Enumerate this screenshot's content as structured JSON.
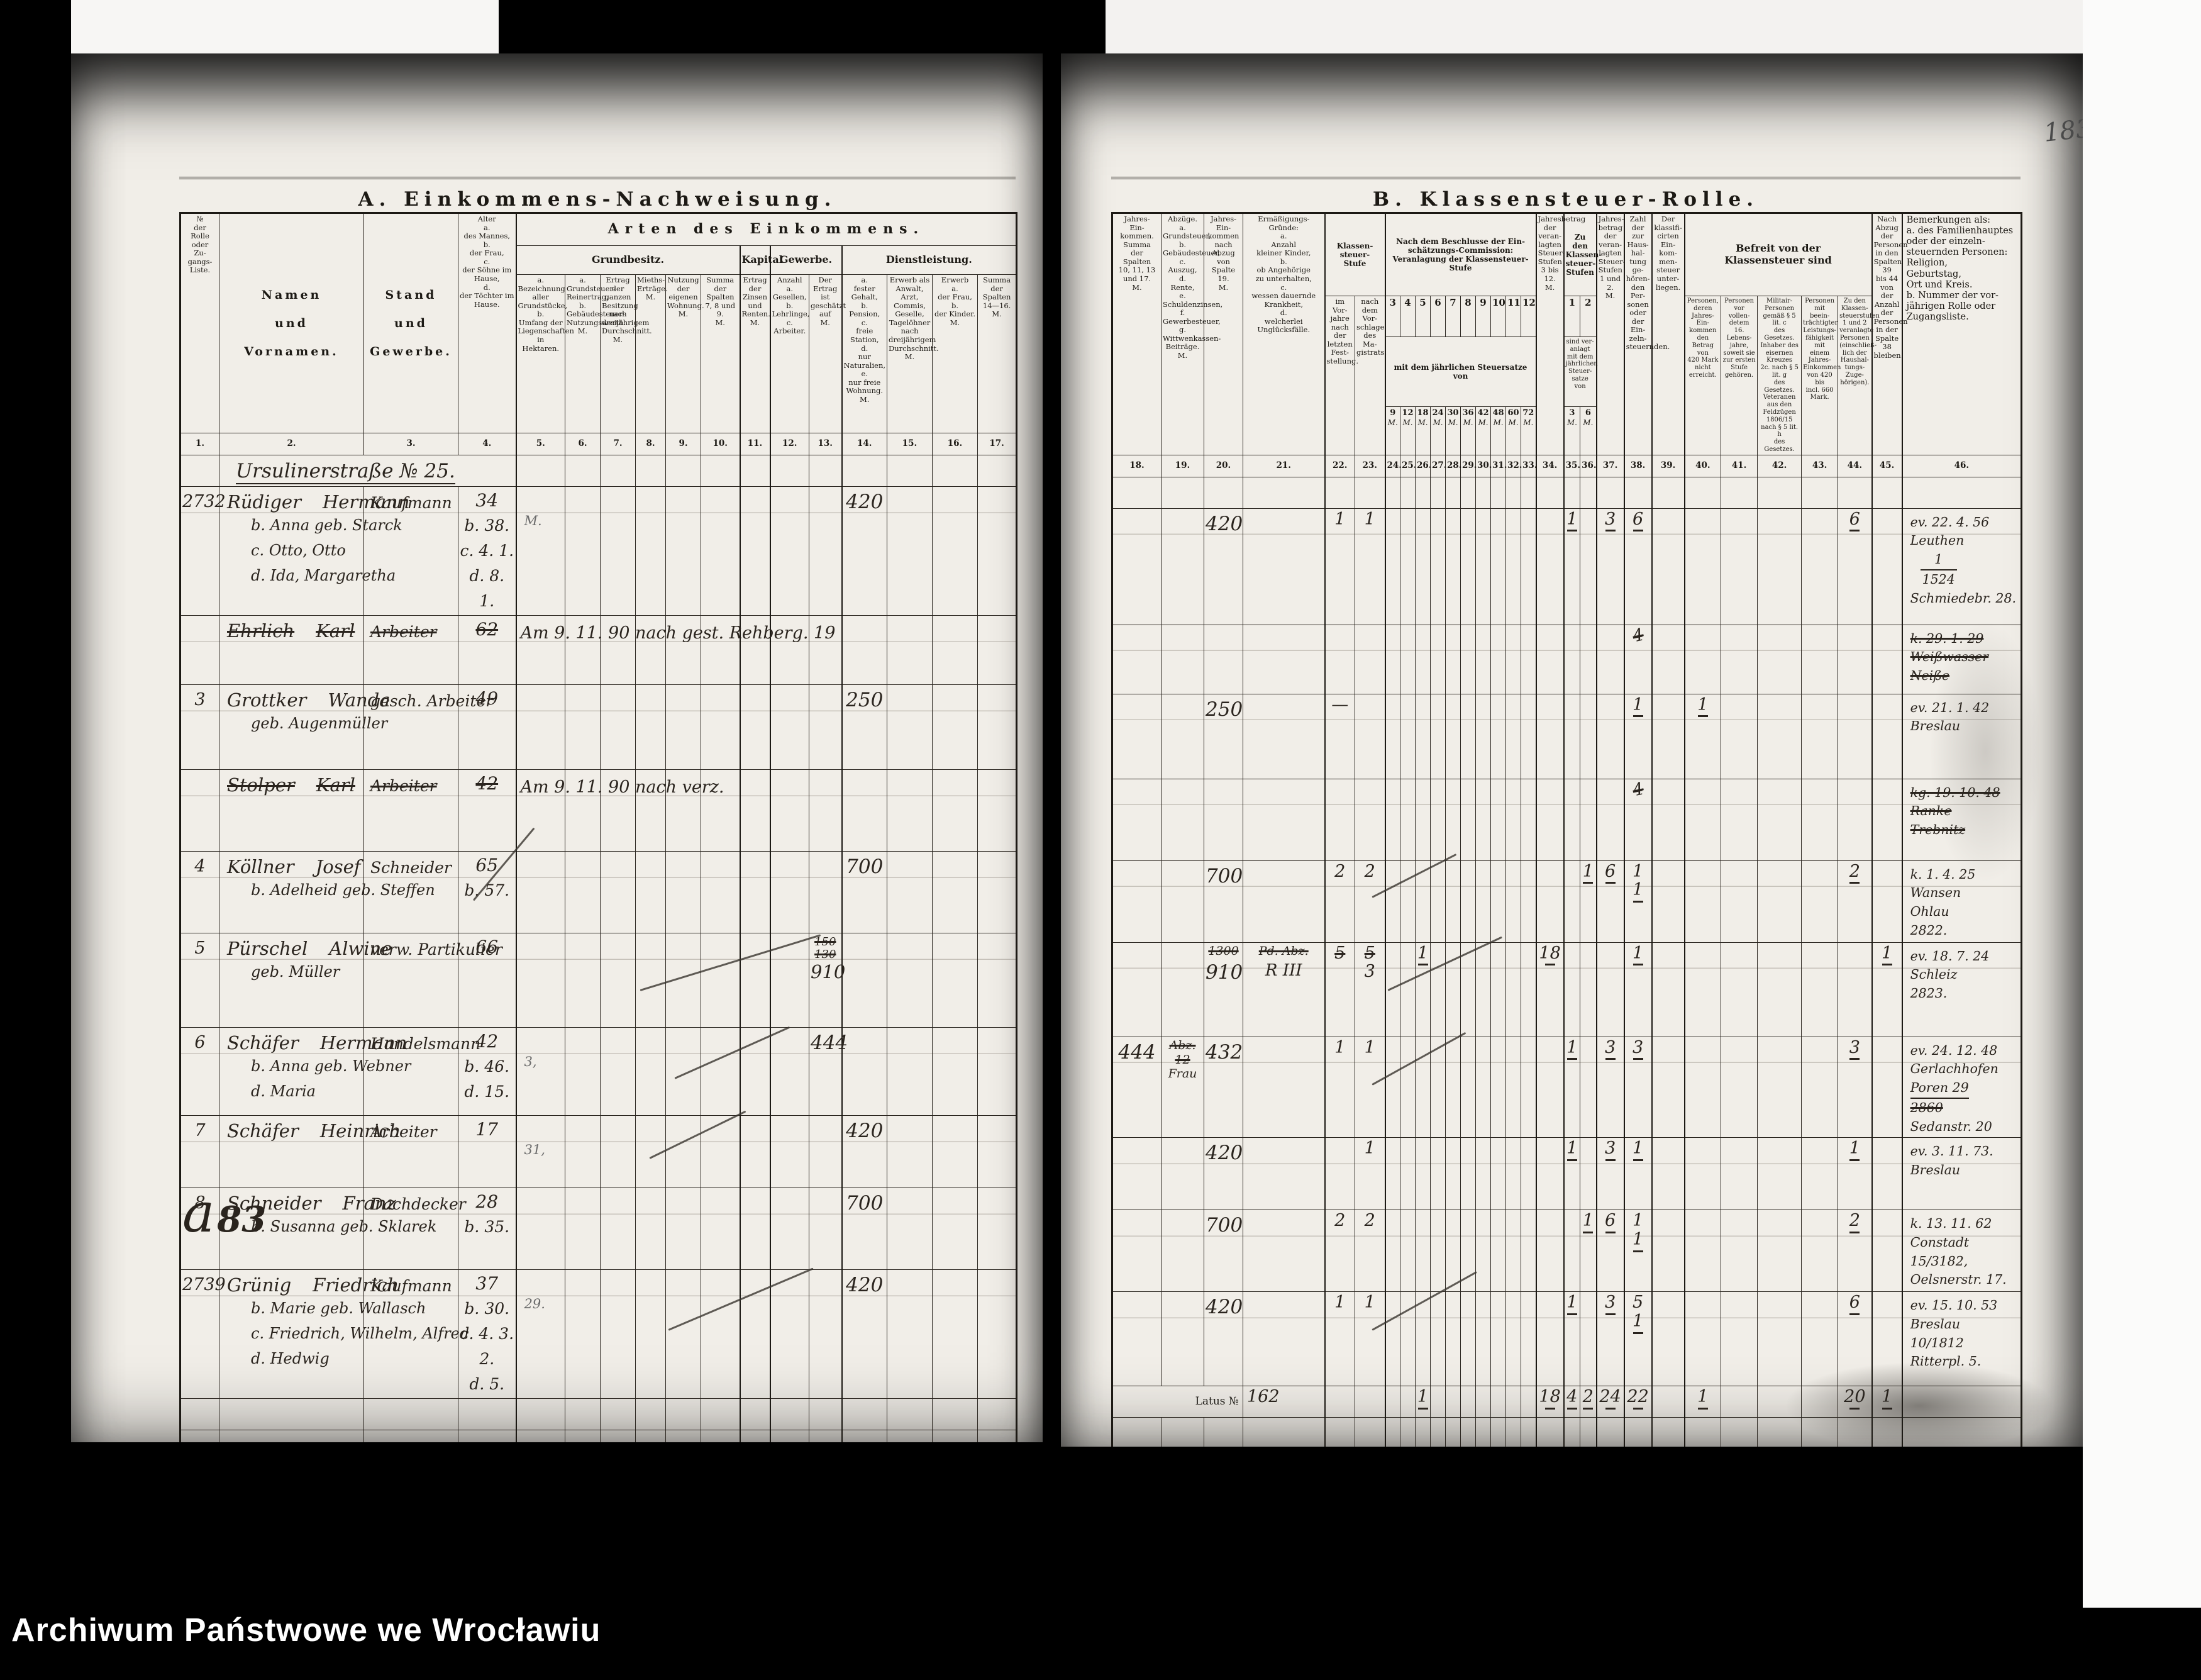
{
  "archive_caption": "Archiwum Państwowe we Wrocławiu",
  "page_number": "183",
  "left_page": {
    "title": "A. Einkommens-Nachweisung.",
    "arten_group": "Arten des Einkommens.",
    "groups": {
      "grundbesitz": "Grundbesitz.",
      "kapital": "Kapital",
      "gewerbe": "Gewerbe.",
      "dienstleistung": "Dienstleistung."
    },
    "cols": {
      "c1": "№\nder\nRolle\noder\nZu-\ngangs-\nListe.",
      "c2": "Namen\n\nund\n\nVornamen.",
      "c3": "Stand\n\nund\n\nGewerbe.",
      "c4": "Alter\na.\ndes Mannes,\nb.\nder Frau,\nc.\nder Söhne im Hause,\nd.\nder Töchter im Hause.",
      "c5": "a.\nBezeichnung aller Grundstücke,\nb.\nUmfang der Liegenschaften in Hektaren.",
      "c6": "a.\nGrundsteuer-Reinertrag,\nb.\nGebäudesteuer-Nutzungswerth.\nM.",
      "c7": "Ertrag der ganzen Besitzung nach dreijährigem Durchschnitt.\nM.",
      "c8": "Mieths-Erträge.\nM.",
      "c9": "Nutzung der eigenen Wohnung.\nM.",
      "c10": "Summa der Spalten 7, 8 und 9.\nM.",
      "c11": "Ertrag der Zinsen und Renten.\nM.",
      "c12": "Anzahl\na.\nGesellen,\nb.\nLehrlinge,\nc.\nArbeiter.",
      "c13": "Der Ertrag ist geschätzt auf\nM.",
      "c14": "a.\nfester Gehalt,\nb.\nPension,\nc.\nfreie Station,\nd.\nnur Naturalien,\ne.\nnur freie Wohnung.\nM.",
      "c15": "Erwerb als Anwalt, Arzt, Commis, Geselle, Tagelöhner nach dreijährigem Durchschnitt.\nM.",
      "c16": "Erwerb\na.\nder Frau,\nb.\nder Kinder.\nM.",
      "c17": "Summa\nder\nSpalten\n14—16.\nM."
    },
    "col_numbers": [
      "1.",
      "2.",
      "3.",
      "4.",
      "5.",
      "6.",
      "7.",
      "8.",
      "9.",
      "10.",
      "11.",
      "12.",
      "13.",
      "14.",
      "15.",
      "16.",
      "17."
    ]
  },
  "right_page": {
    "title": "B. Klassensteuer-Rolle.",
    "klst_group": "Klassen-\nsteuer-\nStufe",
    "commission": {
      "title": "Nach dem Beschlusse der Ein-\nschätzungs-Commission:\nVeranlagung der Klassensteuer-Stufe",
      "stufen": [
        "3",
        "4",
        "5",
        "6",
        "7",
        "8",
        "9",
        "10",
        "11",
        "12"
      ],
      "mit": "mit dem jährlichen Steuersatze\nvon",
      "saetze": [
        "9",
        "12",
        "18",
        "24",
        "30",
        "36",
        "42",
        "48",
        "60",
        "72"
      ],
      "unit": "M."
    },
    "s12": {
      "title": "Zu den\nKlassen-\nsteuer-\nStufen",
      "stufen": [
        "1",
        "2"
      ],
      "mit": "sind ver-\nanlagt\nmit dem\njährlichen\nSteuer-\nsatze von",
      "saetze": [
        "3",
        "6"
      ],
      "unit": "M."
    },
    "befreit_title": "Befreit von der\nKlassensteuer sind",
    "cols": {
      "c18": "Jahres-\nEin-\nkommen.\nSumma\nder\nSpalten\n10, 11, 13\nund 17.\nM.",
      "c19": "Abzüge.\na.\nGrundsteuer,\nb.\nGebäudesteuer,\nc.\nAuszug,\nd.\nRente,\ne.\nSchuldenzinsen,\nf.\nGewerbesteuer,\ng.\nWittwenkassen-Beiträge.\nM.",
      "c20": "Jahres-\nEin-\nkommen\nnach\nAbzug\nvon\nSpalte\n19.\nM.",
      "c21": "Ermäßigungs-\nGründe:\na.\nAnzahl\nkleiner Kinder,\nb.\nob Angehörige\nzu unterhalten,\nc.\nwessen dauernde\nKrankheit,\nd.\nwelcherlei\nUnglücksfälle.",
      "c22": "im\nVor-\njahre\nnach\nder\nletzten\nFest-\nstellung.",
      "c23": "nach\ndem\nVor-\nschlage\ndes\nMa-\ngistrats.",
      "c34": "Jahresbetrag\nder\nveran-\nlagten\nSteuer-\nStufen\n3 bis\n12.\nM.",
      "c37": "Jahres-\nbetrag\nder\nveran-\nlagten\nSteuer-\nStufen\n1 und 2.\nM.",
      "c38": "Zahl\nder zur\nHaus-\nhal-\ntung\nge-\nhören-\nden\nPer-\nsonen\noder der\nEin-\nzeln-\nsteuernden.",
      "c39": "Der\nklassifi-\ncirten\nEin-\nkom-\nmen-\nsteuer\nunter-\nliegen.",
      "c40": "Personen,\nderen\nJahres-Ein-\nkommen\nden Betrag\nvon\n420 Mark\nnicht\nerreicht.",
      "c41": "Personen\nvor vollen-\ndetem\n16. Lebens-\njahre,\nsoweit sie\nzur ersten\nStufe\ngehören.",
      "c42": "Militair-Personen\ngemäß § 5 lit. c\ndes Gesetzes.\nInhaber des\neisernen Kreuzes\n2c. nach § 5 lit. g\ndes Gesetzes.\nVeteranen aus den\nFeldzügen 1806/15\nnach § 5 lit. h\ndes Gesetzes.",
      "c43": "Personen mit\nbeein-\nträchtigter\nLeistungs-\nfähigkeit mit\neinem Jahres-\nEinkommen\nvon 420 bis\nincl. 660\nMark.",
      "c44": "Zu den\nKlassen-\nsteuerstufen\n1 und 2\nveranlagte\nPersonen\n(einschließ-\nlich der\nHaushal-\ntungs-Zuge-\nhörigen).",
      "c45": "Nach\nAbzug\nder\nPersonen\nin den\nSpalten 39\nbis 44\nvon der\nAnzahl der\nPersonen\nin der\nSpalte 38\nbleiben.",
      "c46": "Bemerkungen als:\na. des Familienhauptes\noder der einzeln-\nsteuernden Personen:\nReligion,\nGeburtstag,\nOrt und Kreis.\nb. Nummer der vor-\njährigen Rolle oder\nZugangsliste."
    },
    "col_numbers": [
      "18.",
      "19.",
      "20.",
      "21.",
      "22.",
      "23.",
      "24.",
      "25.",
      "26.",
      "27.",
      "28.",
      "29.",
      "30.",
      "31.",
      "32.",
      "33.",
      "34.",
      "35.",
      "36.",
      "37.",
      "38.",
      "39.",
      "40.",
      "41.",
      "42.",
      "43.",
      "44.",
      "45.",
      "46."
    ]
  },
  "rows": [
    {
      "type": "street",
      "text": "Ursulinerstraße № 25."
    },
    {
      "no": "2732",
      "name": "Rüdiger",
      "vorname": "Hermann",
      "stand": "Kaufmann",
      "age": "34",
      "pencil": "M.",
      "sublines": [
        {
          "t": "b. Anna geb. Starck",
          "a": "b. 38."
        },
        {
          "t": "c. Otto, Otto",
          "a": "c. 4. 1."
        },
        {
          "t": "d. Ida, Margaretha",
          "a": "d. 8. 1."
        }
      ],
      "l14": "420",
      "r20": "420",
      "r22": "1",
      "r23": "1",
      "r35": "1",
      "r37": "3",
      "r38": [
        "6"
      ],
      "r44": "6",
      "bem": [
        {
          "t": "ev. 22. 4. 56"
        },
        {
          "t": "Leuthen"
        },
        {
          "t": "1",
          "frac": "1524"
        },
        {
          "t": "Schmiedebr. 28."
        }
      ]
    },
    {
      "struck": true,
      "no": "",
      "name": "Ehrlich",
      "vorname": "Karl",
      "stand": "Arbeiter",
      "age": "62",
      "note": "Am 9. 11. 90 nach gest. Rehberg. 19",
      "r38": [
        "4"
      ],
      "bem": [
        {
          "t": "k. 29. 1. 29",
          "s": true
        },
        {
          "t": "Weißwasser",
          "s": true
        },
        {
          "t": "Neiße",
          "s": true
        }
      ]
    },
    {
      "no": "3",
      "name": "Grottker",
      "vorname": "Wanda",
      "stand": "gesch. Arbeiter",
      "age": "49",
      "sublines": [
        {
          "t": "geb. Augenmüller",
          "a": ""
        }
      ],
      "l14": "250",
      "r20": "250",
      "r22": "—",
      "r38": [
        "1"
      ],
      "r40": "1",
      "bem": [
        {
          "t": "ev. 21. 1. 42"
        },
        {
          "t": "Breslau"
        }
      ]
    },
    {
      "struck": true,
      "no": "",
      "name": "Stolper",
      "vorname": "Karl",
      "stand": "Arbeiter",
      "age": "42",
      "note": "Am 9. 11. 90 nach verz.",
      "r38": [
        "4"
      ],
      "bem": [
        {
          "t": "kg. 19. 10. 48",
          "s": true
        },
        {
          "t": "Ranke",
          "s": true
        },
        {
          "t": "Trebnitz",
          "s": true
        }
      ]
    },
    {
      "no": "4",
      "name": "Köllner",
      "vorname": "Josef",
      "stand": "Schneider",
      "age": "65",
      "sublines": [
        {
          "t": "b. Adelheid geb. Steffen",
          "a": "b. 57."
        }
      ],
      "l14": "700",
      "r20": "700",
      "r22": "2",
      "r23": "2",
      "r36": "1",
      "r37": "6",
      "r38": [
        "1",
        "1"
      ],
      "r44": "2",
      "bem": [
        {
          "t": "k. 1. 4. 25"
        },
        {
          "t": "Wansen"
        },
        {
          "t": "Ohlau"
        },
        {
          "t": "2822."
        }
      ]
    },
    {
      "no": "5",
      "name": "Pürschel",
      "vorname": "Alwine",
      "stand": "verw. Partikulier",
      "age": "66",
      "sublines": [
        {
          "t": "geb. Müller",
          "a": ""
        }
      ],
      "l13s": [
        "150",
        "130"
      ],
      "l13": "910",
      "r20s": "1300",
      "r20": "910",
      "r21s": "Pd. Abz.",
      "r21": "R III",
      "r22s": "5",
      "r23s": "5",
      "r23": "3",
      "r26": "1",
      "r34": "18",
      "r38": [
        "1"
      ],
      "r45": "1",
      "bem": [
        {
          "t": "ev. 18. 7. 24"
        },
        {
          "t": "Schleiz"
        },
        {
          "t": "2823."
        }
      ]
    },
    {
      "no": "6",
      "name": "Schäfer",
      "vorname": "Hermann",
      "stand": "Handelsmann",
      "age": "42",
      "pencil": "3,",
      "sublines": [
        {
          "t": "b. Anna geb. Webner",
          "a": "b. 46."
        },
        {
          "t": "d. Maria",
          "a": "d. 15."
        }
      ],
      "l13": "444",
      "r18": "444",
      "r19": [
        {
          "t": "Abz. 12",
          "s": true
        },
        {
          "t": "Frau"
        }
      ],
      "r20": "432",
      "r22": "1",
      "r23": "1",
      "r35": "1",
      "r37": "3",
      "r38": [
        "3"
      ],
      "r44": "3",
      "bem": [
        {
          "t": "ev. 24. 12. 48"
        },
        {
          "t": "Gerlachhofen"
        },
        {
          "t": "Poren 29",
          "u": true
        },
        {
          "t": "2860",
          "s": true
        },
        {
          "t": "Sedanstr. 20"
        }
      ]
    },
    {
      "no": "7",
      "name": "Schäfer",
      "vorname": "Heinrich",
      "stand": "Arbeiter",
      "age": "17",
      "pencil": "31,",
      "l14": "420",
      "r20": "420",
      "r23": "1",
      "r35": "1",
      "r37": "3",
      "r38": [
        "1"
      ],
      "r44": "1",
      "bem": [
        {
          "t": "ev. 3. 11. 73."
        },
        {
          "t": "Breslau"
        }
      ]
    },
    {
      "no": "8",
      "margin": "a 83",
      "name": "Schneider",
      "vorname": "Franz",
      "stand": "Dachdecker",
      "age": "28",
      "sublines": [
        {
          "t": "b. Susanna geb. Sklarek",
          "a": "b. 35."
        }
      ],
      "l14": "700",
      "r20": "700",
      "r22": "2",
      "r23": "2",
      "r36": "1",
      "r37": "6",
      "r38": [
        "1",
        "1"
      ],
      "r44": "2",
      "bem": [
        {
          "t": "k. 13. 11. 62"
        },
        {
          "t": "Constadt"
        },
        {
          "t": "15/3182,"
        },
        {
          "t": "Oelsnerstr. 17."
        }
      ]
    },
    {
      "no": "2739",
      "name": "Grünig",
      "vorname": "Friedrich",
      "stand": "Kaufmann",
      "age": "37",
      "pencil": "29.",
      "sublines": [
        {
          "t": "b. Marie geb. Wallasch",
          "a": "b. 30."
        },
        {
          "t": "c. Friedrich, Wilhelm, Alfred",
          "a": "c. 4. 3. 2."
        },
        {
          "t": "d. Hedwig",
          "a": "d. 5."
        }
      ],
      "l14": "420",
      "r20": "420",
      "r22": "1",
      "r23": "1",
      "r35": "1",
      "r37": "3",
      "r38": [
        "5",
        "1"
      ],
      "r44": "6",
      "bem": [
        {
          "t": "ev. 15. 10. 53"
        },
        {
          "t": "Breslau"
        },
        {
          "t": "10/1812"
        },
        {
          "t": "Ritterpl. 5."
        }
      ]
    }
  ],
  "latus": {
    "label": "Latus №",
    "number": "162",
    "c26": "1",
    "c34": "18",
    "c35": "4",
    "c36": "2",
    "c37": "24",
    "c38": "22",
    "c40": "1",
    "c44": "20",
    "c45": "1"
  }
}
